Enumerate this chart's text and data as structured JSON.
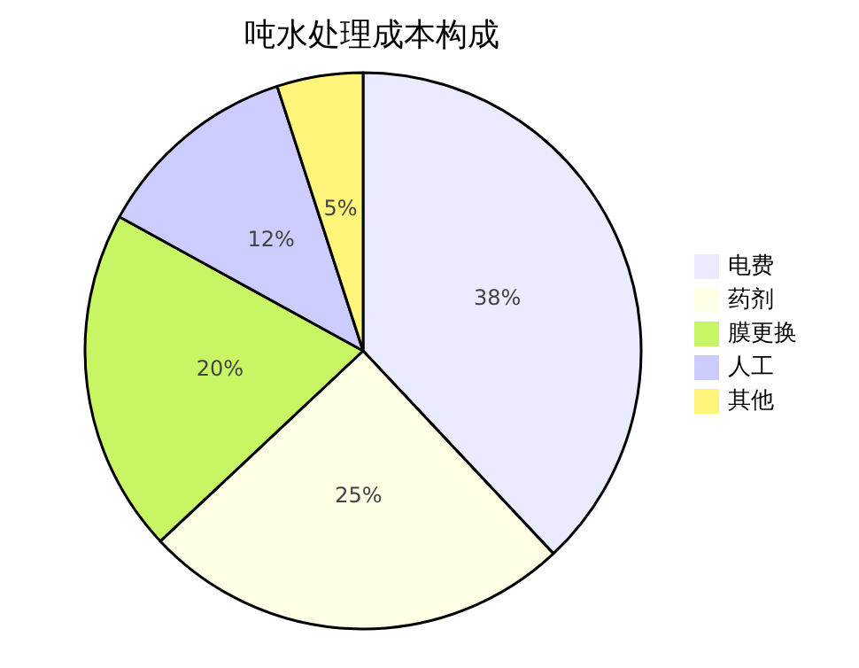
{
  "chart_data": {
    "type": "pie",
    "title": "吨水处理成本构成",
    "categories": [
      "电费",
      "药剂",
      "膜更换",
      "人工",
      "其他"
    ],
    "values": [
      38,
      25,
      20,
      12,
      5
    ],
    "value_labels": [
      "38%",
      "25%",
      "20%",
      "12%",
      "5%"
    ],
    "colors": [
      "#ebebff",
      "#ffffe6",
      "#c8f564",
      "#ccccff",
      "#fff57a"
    ],
    "legend": "right"
  }
}
